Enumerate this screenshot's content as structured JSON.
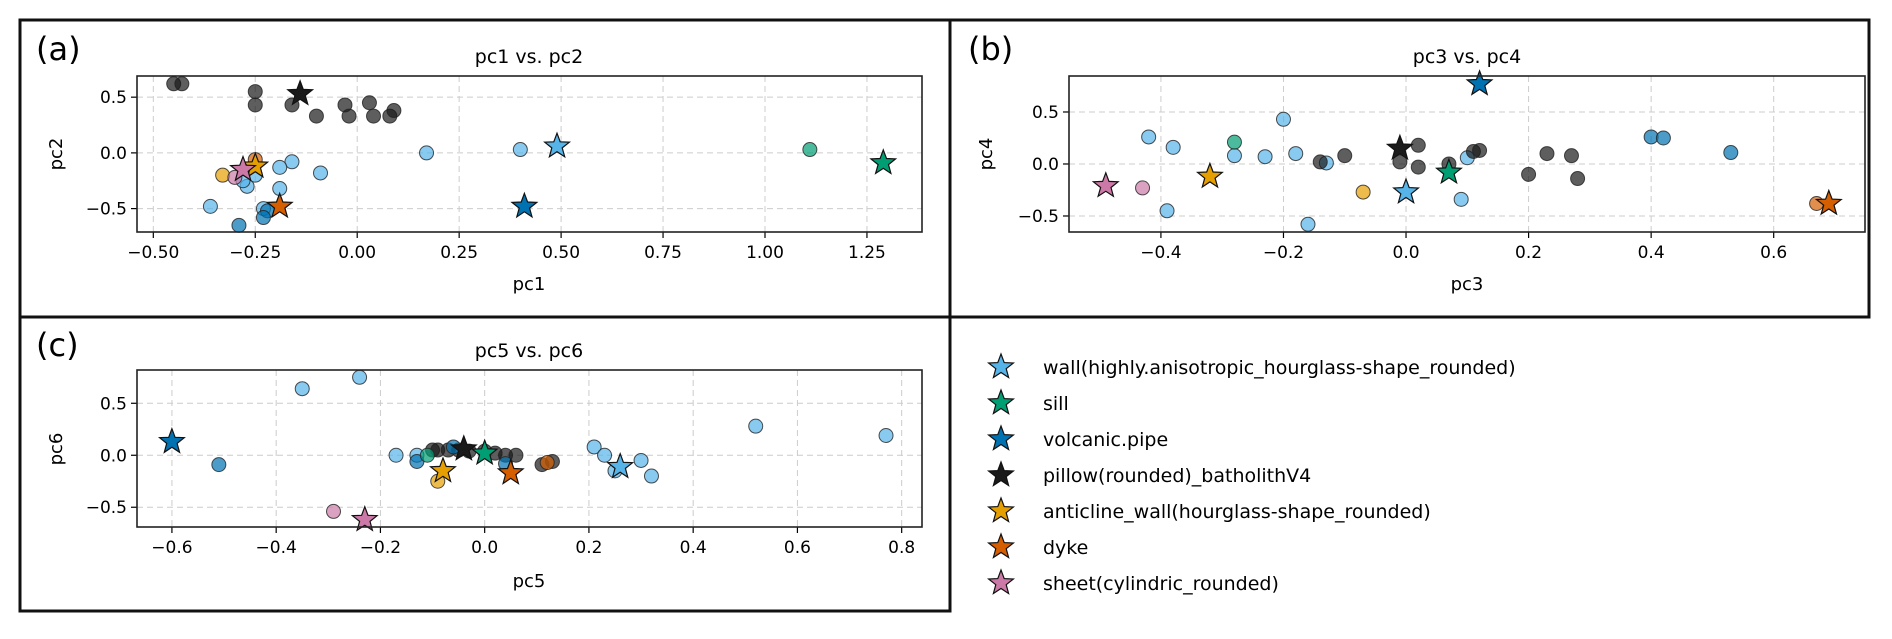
{
  "chart_data": {
    "type": "scatter",
    "classes": [
      {
        "label": "wall(highly.anisotropic_hourglass-shape_rounded)",
        "color": "#56B4E9"
      },
      {
        "label": "sill",
        "color": "#009E73"
      },
      {
        "label": "volcanic.pipe",
        "color": "#0072B2"
      },
      {
        "label": "pillow(rounded)_batholithV4",
        "color": "#1a1a1a"
      },
      {
        "label": "anticline_wall(hourglass-shape_rounded)",
        "color": "#E69F00"
      },
      {
        "label": "dyke",
        "color": "#D55E00"
      },
      {
        "label": "sheet(cylindric_rounded)",
        "color": "#CC79A7"
      }
    ],
    "legend_placement": "lower-right",
    "grid": true,
    "panels": [
      {
        "tag": "(a)",
        "title": "pc1 vs. pc2",
        "xlabel": "pc1",
        "ylabel": "pc2",
        "xlim": [
          -0.54,
          1.385
        ],
        "ylim": [
          -0.71,
          0.69
        ],
        "xticks": [
          -0.5,
          -0.25,
          0.0,
          0.25,
          0.5,
          0.75,
          1.0,
          1.25
        ],
        "xdec": 2,
        "yticks": [
          -0.5,
          0.0,
          0.5
        ],
        "ydec": 1,
        "circles": [
          [
            3,
            -0.45,
            0.62
          ],
          [
            3,
            -0.43,
            0.62
          ],
          [
            3,
            -0.25,
            0.55
          ],
          [
            3,
            -0.25,
            0.43
          ],
          [
            3,
            -0.16,
            0.43
          ],
          [
            3,
            -0.1,
            0.33
          ],
          [
            3,
            -0.03,
            0.43
          ],
          [
            3,
            -0.02,
            0.33
          ],
          [
            3,
            0.03,
            0.45
          ],
          [
            3,
            0.04,
            0.33
          ],
          [
            3,
            0.08,
            0.33
          ],
          [
            3,
            0.09,
            0.38
          ],
          [
            0,
            0.17,
            0.0
          ],
          [
            0,
            0.4,
            0.03
          ],
          [
            0,
            -0.09,
            -0.18
          ],
          [
            0,
            -0.16,
            -0.08
          ],
          [
            0,
            -0.19,
            -0.13
          ],
          [
            0,
            -0.19,
            -0.32
          ],
          [
            0,
            -0.36,
            -0.48
          ],
          [
            0,
            -0.27,
            -0.3
          ],
          [
            0,
            -0.28,
            -0.25
          ],
          [
            0,
            -0.25,
            -0.2
          ],
          [
            0,
            -0.23,
            -0.5
          ],
          [
            2,
            -0.29,
            -0.65
          ],
          [
            2,
            -0.22,
            -0.52
          ],
          [
            2,
            -0.23,
            -0.58
          ],
          [
            1,
            1.11,
            0.03
          ],
          [
            4,
            -0.33,
            -0.2
          ],
          [
            5,
            -0.25,
            -0.06
          ],
          [
            6,
            -0.3,
            -0.22
          ]
        ],
        "stars": [
          [
            3,
            -0.14,
            0.53
          ],
          [
            0,
            0.49,
            0.06
          ],
          [
            2,
            0.41,
            -0.48
          ],
          [
            1,
            1.29,
            -0.09
          ],
          [
            4,
            -0.25,
            -0.12
          ],
          [
            5,
            -0.19,
            -0.48
          ],
          [
            6,
            -0.28,
            -0.15
          ]
        ]
      },
      {
        "tag": "(b)",
        "title": "pc3 vs. pc4",
        "xlabel": "pc3",
        "ylabel": "pc4",
        "xlim": [
          -0.55,
          0.749
        ],
        "ylim": [
          -0.654,
          0.846
        ],
        "xticks": [
          -0.4,
          -0.2,
          0.0,
          0.2,
          0.4,
          0.6
        ],
        "xdec": 1,
        "yticks": [
          -0.5,
          0.0,
          0.5
        ],
        "ydec": 1,
        "circles": [
          [
            0,
            -0.42,
            0.26
          ],
          [
            0,
            -0.38,
            0.16
          ],
          [
            0,
            -0.28,
            0.08
          ],
          [
            0,
            -0.23,
            0.07
          ],
          [
            0,
            -0.2,
            0.43
          ],
          [
            0,
            -0.18,
            0.1
          ],
          [
            0,
            -0.13,
            0.01
          ],
          [
            0,
            -0.39,
            -0.45
          ],
          [
            0,
            -0.16,
            -0.58
          ],
          [
            0,
            0.1,
            0.06
          ],
          [
            0,
            0.09,
            -0.34
          ],
          [
            3,
            -0.14,
            0.02
          ],
          [
            3,
            -0.1,
            0.08
          ],
          [
            3,
            -0.01,
            0.02
          ],
          [
            3,
            0.02,
            0.18
          ],
          [
            3,
            0.02,
            -0.03
          ],
          [
            3,
            0.07,
            0.0
          ],
          [
            3,
            0.11,
            0.12
          ],
          [
            3,
            0.12,
            0.13
          ],
          [
            3,
            0.2,
            -0.1
          ],
          [
            3,
            0.23,
            0.1
          ],
          [
            3,
            0.27,
            0.08
          ],
          [
            3,
            0.28,
            -0.14
          ],
          [
            2,
            0.4,
            0.26
          ],
          [
            2,
            0.42,
            0.25
          ],
          [
            2,
            0.53,
            0.11
          ],
          [
            1,
            -0.28,
            0.21
          ],
          [
            4,
            -0.07,
            -0.27
          ],
          [
            5,
            0.67,
            -0.38
          ],
          [
            6,
            -0.43,
            -0.23
          ]
        ],
        "stars": [
          [
            3,
            -0.01,
            0.15
          ],
          [
            0,
            0.0,
            -0.27
          ],
          [
            2,
            0.12,
            0.77
          ],
          [
            1,
            0.07,
            -0.08
          ],
          [
            4,
            -0.32,
            -0.12
          ],
          [
            5,
            0.69,
            -0.38
          ],
          [
            6,
            -0.49,
            -0.21
          ]
        ]
      },
      {
        "tag": "(c)",
        "title": "pc5 vs. pc6",
        "xlabel": "pc5",
        "ylabel": "pc6",
        "xlim": [
          -0.667,
          0.839
        ],
        "ylim": [
          -0.69,
          0.82
        ],
        "xticks": [
          -0.6,
          -0.4,
          -0.2,
          0.0,
          0.2,
          0.4,
          0.6,
          0.8
        ],
        "xdec": 1,
        "yticks": [
          -0.5,
          0.0,
          0.5
        ],
        "ydec": 1,
        "circles": [
          [
            0,
            -0.35,
            0.64
          ],
          [
            0,
            -0.24,
            0.75
          ],
          [
            0,
            -0.17,
            0.0
          ],
          [
            0,
            -0.13,
            0.0
          ],
          [
            0,
            0.21,
            0.08
          ],
          [
            0,
            0.23,
            0.0
          ],
          [
            0,
            0.25,
            -0.15
          ],
          [
            0,
            0.3,
            -0.05
          ],
          [
            0,
            0.32,
            -0.2
          ],
          [
            0,
            0.52,
            0.28
          ],
          [
            0,
            0.77,
            0.19
          ],
          [
            3,
            -0.1,
            0.05
          ],
          [
            3,
            -0.09,
            0.05
          ],
          [
            3,
            -0.07,
            0.05
          ],
          [
            3,
            -0.05,
            0.05
          ],
          [
            3,
            -0.03,
            0.04
          ],
          [
            3,
            0.0,
            0.04
          ],
          [
            3,
            0.02,
            0.02
          ],
          [
            3,
            0.04,
            0.0
          ],
          [
            3,
            0.06,
            0.0
          ],
          [
            3,
            0.11,
            -0.09
          ],
          [
            3,
            0.13,
            -0.06
          ],
          [
            2,
            -0.51,
            -0.09
          ],
          [
            2,
            -0.13,
            -0.06
          ],
          [
            2,
            -0.06,
            0.08
          ],
          [
            2,
            0.04,
            -0.08
          ],
          [
            1,
            -0.11,
            0.0
          ],
          [
            4,
            -0.09,
            -0.25
          ],
          [
            5,
            0.12,
            -0.07
          ],
          [
            6,
            -0.29,
            -0.54
          ]
        ],
        "stars": [
          [
            3,
            -0.04,
            0.06
          ],
          [
            0,
            0.26,
            -0.11
          ],
          [
            2,
            -0.6,
            0.13
          ],
          [
            1,
            0.0,
            0.02
          ],
          [
            4,
            -0.08,
            -0.15
          ],
          [
            5,
            0.05,
            -0.17
          ],
          [
            6,
            -0.23,
            -0.62
          ]
        ]
      }
    ]
  }
}
